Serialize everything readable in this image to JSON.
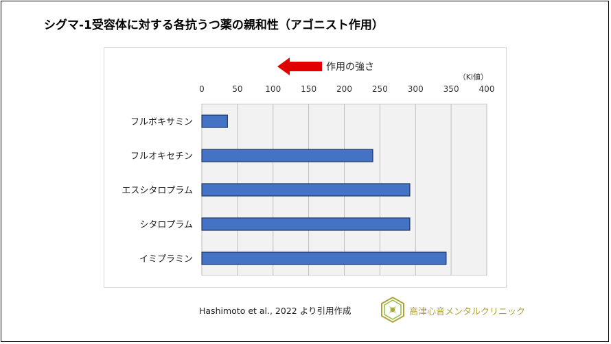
{
  "title": "シグマ-1受容体に対する各抗うつ薬の親和性（アゴニスト作用）",
  "source": "Hashimoto et al., 2022 より引用作成",
  "clinic_name": "高津心音メンタルクリニック",
  "colors": {
    "bar": "#4472c4",
    "bar_border": "#1f3864",
    "plot_bg": "#f2f2f2",
    "arrow": "#e00000",
    "grid": "#bfbfbf",
    "clinic": "#b0a23a"
  },
  "chart_data": {
    "type": "bar",
    "orientation": "horizontal",
    "title": "シグマ-1受容体に対する各抗うつ薬の親和性（アゴニスト作用）",
    "unit_label": "（Ki値）",
    "arrow_label": "作用の強さ",
    "categories": [
      "フルボキサミン",
      "フルオキセチン",
      "エスシタロプラム",
      "シタロプラム",
      "イミプラミン"
    ],
    "values": [
      36,
      240,
      292,
      292,
      343
    ],
    "xlim": [
      0,
      400
    ],
    "xticks": [
      0,
      50,
      100,
      150,
      200,
      250,
      300,
      350,
      400
    ],
    "grid": true,
    "axis_position": "top"
  }
}
